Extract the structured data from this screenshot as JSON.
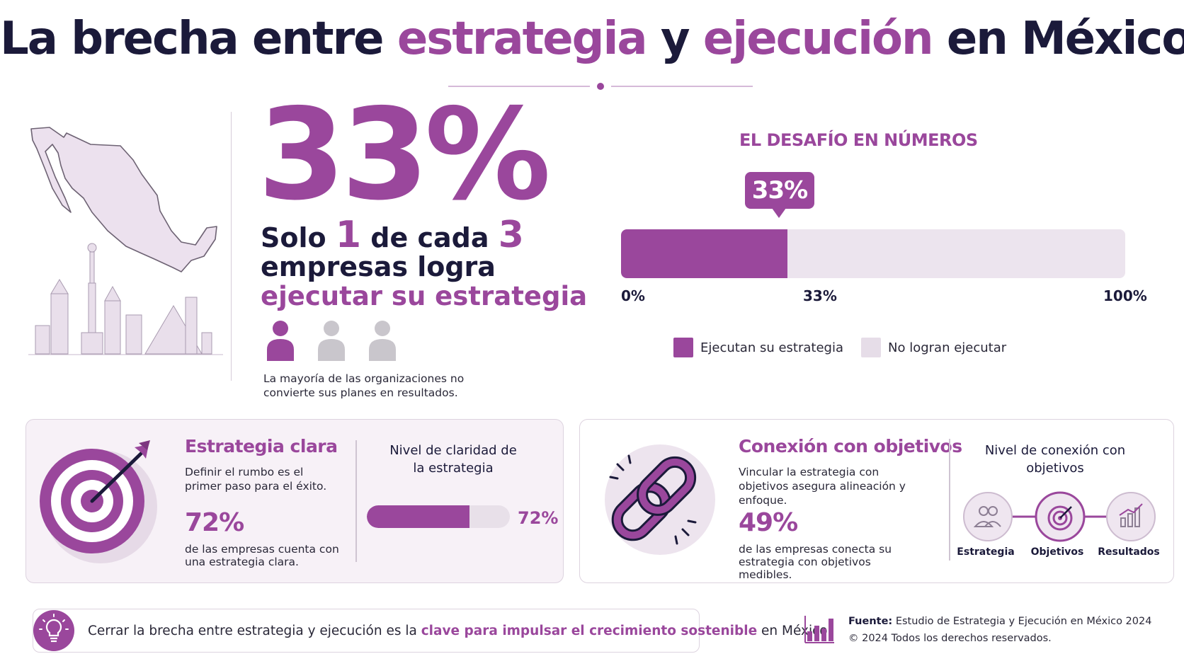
{
  "title": {
    "part1": "La brecha entre ",
    "part2": "estrategia",
    "part3": " y ",
    "part4": "ejecución",
    "part5": " en México"
  },
  "hero": {
    "big_percent": "33%",
    "line1_a": "Solo ",
    "line1_b": "1",
    "line1_c": " de cada ",
    "line1_d": "3",
    "line2": "empresas logra",
    "line3": "ejecutar su estrategia",
    "people_filled": 1,
    "people_total": 3,
    "description": "La mayoría de las organizaciones no convierte sus planes en resultados."
  },
  "numbers": {
    "title": "EL DESAFÍO EN NÚMEROS",
    "callout": "33%",
    "value": 33,
    "axis": [
      "0%",
      "33%",
      "100%"
    ],
    "legend": [
      "Ejecutan su estrategia",
      "No logran ejecutar"
    ]
  },
  "card1": {
    "title": "Estrategia clara",
    "description": "Definir el rumbo es el primer paso para el éxito.",
    "percent": "72%",
    "percent_desc": "de las empresas cuenta con una estrategia clara.",
    "level_title": "Nivel de claridad de la estrategia",
    "bar_value": 72,
    "bar_label": "72%"
  },
  "card2": {
    "title": "Conexión con objetivos",
    "description": "Vincular la estrategia con objetivos asegura alineación y enfoque.",
    "percent": "49%",
    "percent_desc": "de las empresas conecta su estrategia con objetivos medibles.",
    "level_title": "Nivel de conexión con objetivos",
    "flow": [
      "Estrategia",
      "Objetivos",
      "Resultados"
    ]
  },
  "footer": {
    "msg_a": "Cerrar la brecha entre estrategia y ejecución es la ",
    "msg_b": "clave para impulsar el crecimiento sostenible",
    "msg_c": " en México.",
    "source_label": "Fuente:",
    "source_text": " Estudio de Estrategia y Ejecución en México 2024",
    "copyright": "© 2024  Todos los derechos reservados."
  },
  "colors": {
    "accent": "#9a479c",
    "dark": "#1b1a3a",
    "light": "#ece4ee"
  },
  "icons": [
    "mexico-map-icon",
    "person-icon",
    "target-icon",
    "chain-link-icon",
    "people-icon",
    "bar-chart-icon",
    "lightbulb-icon"
  ]
}
